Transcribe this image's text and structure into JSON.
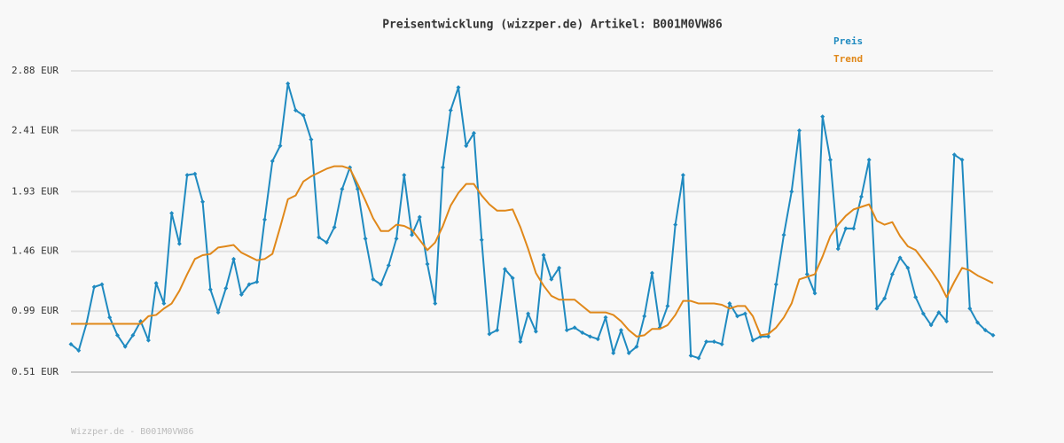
{
  "chart_data": {
    "type": "line",
    "title": "Preisentwicklung (wizzper.de) Artikel: B001M0VW86",
    "footer": "Wizzper.de - B001M0VW86",
    "ylim": [
      0.51,
      2.88
    ],
    "yticks": [
      {
        "value": 0.51,
        "label": "0.51 EUR"
      },
      {
        "value": 0.99,
        "label": "0.99 EUR"
      },
      {
        "value": 1.46,
        "label": "1.46 EUR"
      },
      {
        "value": 1.93,
        "label": "1.93 EUR"
      },
      {
        "value": 2.41,
        "label": "2.41 EUR"
      },
      {
        "value": 2.88,
        "label": "2.88 EUR"
      }
    ],
    "grid": true,
    "legend": "top-right",
    "series": [
      {
        "name": "Preis",
        "color": "#1f8ac0",
        "markers": true,
        "values": [
          0.73,
          0.68,
          0.89,
          1.18,
          1.2,
          0.94,
          0.8,
          0.71,
          0.8,
          0.91,
          0.76,
          1.21,
          1.05,
          1.76,
          1.52,
          2.06,
          2.07,
          1.85,
          1.16,
          0.98,
          1.17,
          1.4,
          1.12,
          1.2,
          1.22,
          1.71,
          2.17,
          2.29,
          2.78,
          2.57,
          2.53,
          2.34,
          1.57,
          1.53,
          1.65,
          1.95,
          2.12,
          1.95,
          1.56,
          1.24,
          1.2,
          1.35,
          1.56,
          2.06,
          1.59,
          1.73,
          1.36,
          1.05,
          2.12,
          2.57,
          2.75,
          2.29,
          2.39,
          1.55,
          0.81,
          0.84,
          1.32,
          1.25,
          0.75,
          0.97,
          0.83,
          1.43,
          1.24,
          1.33,
          0.84,
          0.86,
          0.82,
          0.79,
          0.77,
          0.94,
          0.66,
          0.84,
          0.66,
          0.71,
          0.95,
          1.29,
          0.86,
          1.03,
          1.67,
          2.06,
          0.64,
          0.62,
          0.75,
          0.75,
          0.73,
          1.05,
          0.95,
          0.97,
          0.76,
          0.79,
          0.79,
          1.2,
          1.59,
          1.93,
          2.41,
          1.28,
          1.13,
          2.52,
          2.18,
          1.48,
          1.64,
          1.64,
          1.89,
          2.18,
          1.01,
          1.09,
          1.28,
          1.41,
          1.33,
          1.1,
          0.97,
          0.88,
          0.98,
          0.91,
          2.22,
          2.18,
          1.01,
          0.9,
          0.84,
          0.8
        ]
      },
      {
        "name": "Trend",
        "color": "#e0881a",
        "markers": false,
        "values": [
          0.89,
          0.89,
          0.89,
          0.89,
          0.89,
          0.89,
          0.89,
          0.89,
          0.89,
          0.89,
          0.95,
          0.96,
          1.01,
          1.05,
          1.15,
          1.28,
          1.4,
          1.43,
          1.44,
          1.49,
          1.5,
          1.51,
          1.45,
          1.42,
          1.39,
          1.4,
          1.44,
          1.65,
          1.87,
          1.9,
          2.01,
          2.05,
          2.08,
          2.11,
          2.13,
          2.13,
          2.11,
          1.99,
          1.86,
          1.72,
          1.62,
          1.62,
          1.67,
          1.66,
          1.63,
          1.55,
          1.47,
          1.53,
          1.66,
          1.82,
          1.92,
          1.99,
          1.99,
          1.9,
          1.83,
          1.78,
          1.78,
          1.79,
          1.65,
          1.48,
          1.29,
          1.19,
          1.11,
          1.08,
          1.08,
          1.08,
          1.03,
          0.98,
          0.98,
          0.98,
          0.96,
          0.91,
          0.84,
          0.79,
          0.8,
          0.85,
          0.85,
          0.88,
          0.96,
          1.07,
          1.07,
          1.05,
          1.05,
          1.05,
          1.04,
          1.01,
          1.03,
          1.03,
          0.95,
          0.8,
          0.81,
          0.86,
          0.94,
          1.05,
          1.24,
          1.26,
          1.28,
          1.42,
          1.58,
          1.67,
          1.74,
          1.79,
          1.81,
          1.83,
          1.7,
          1.67,
          1.69,
          1.58,
          1.5,
          1.47,
          1.39,
          1.31,
          1.22,
          1.1,
          1.22,
          1.33,
          1.31,
          1.27,
          1.24,
          1.21
        ]
      }
    ]
  }
}
